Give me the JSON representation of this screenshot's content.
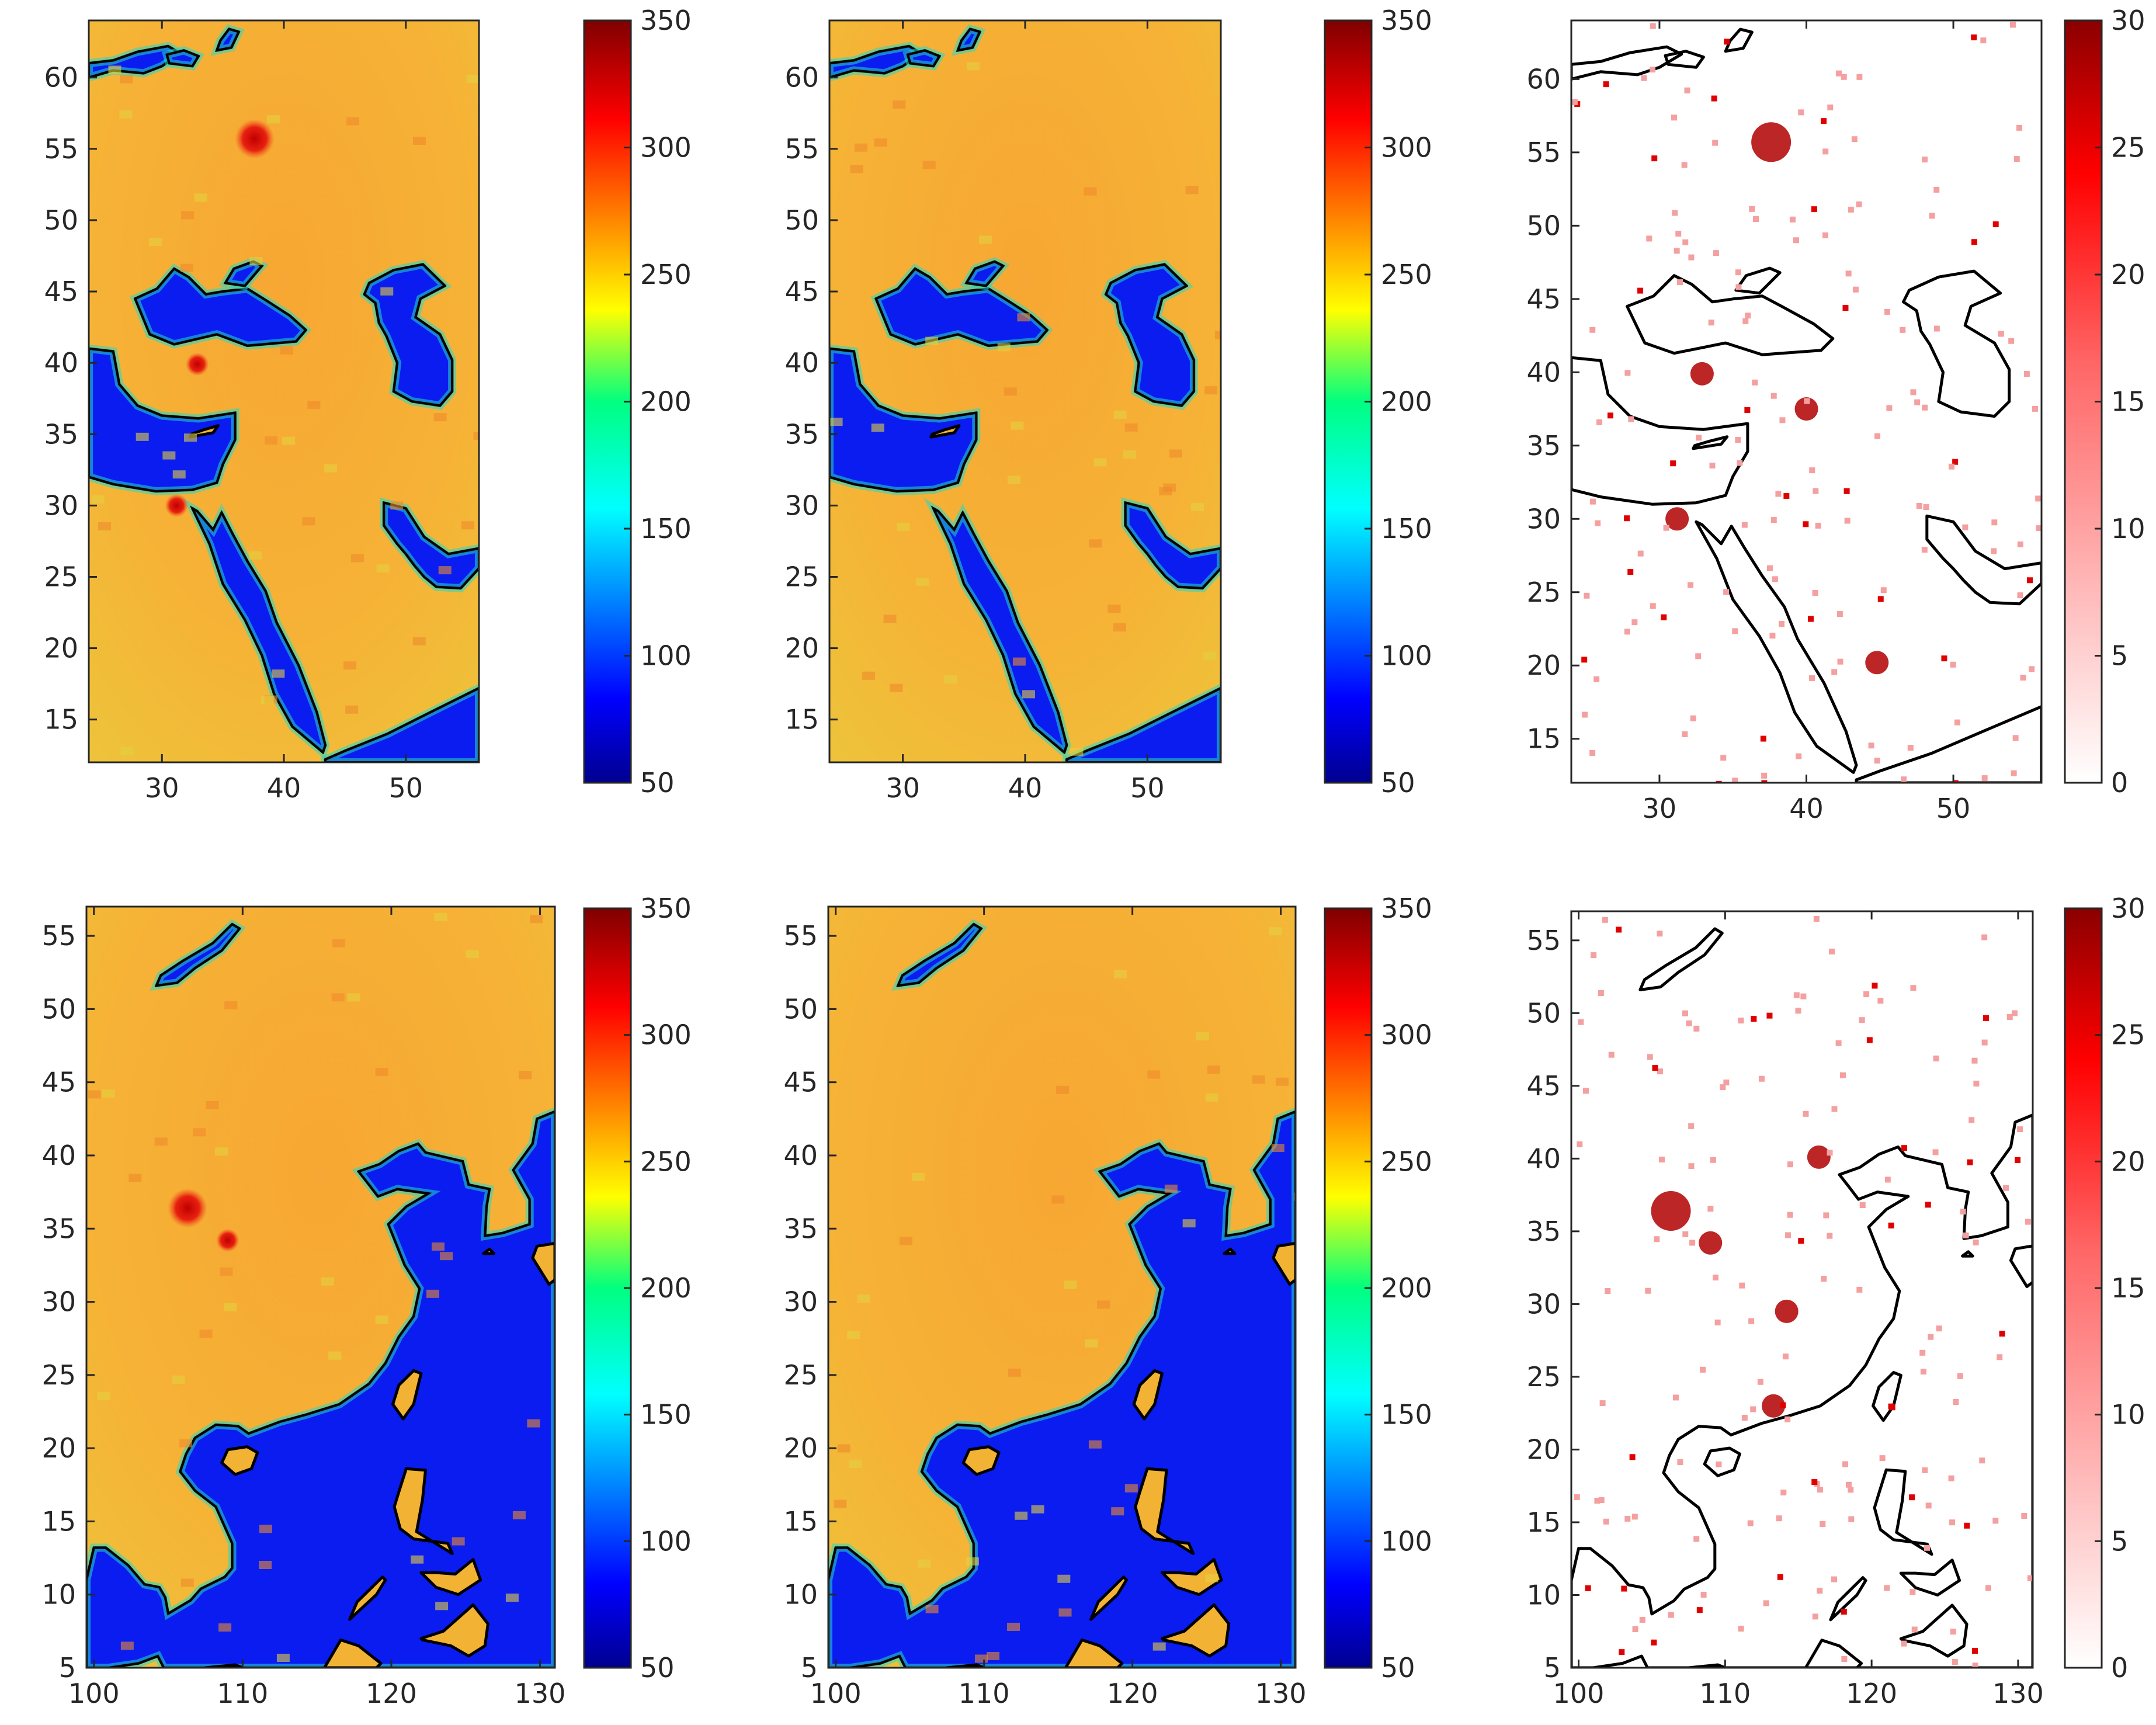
{
  "figure": {
    "description_rows": [
      "Middle East",
      "East Asia"
    ]
  },
  "chart_data": [
    {
      "type": "heatmap",
      "panel": "top-left",
      "xlim": [
        24,
        56
      ],
      "ylim": [
        12,
        64
      ],
      "xticks": [
        30,
        40,
        50
      ],
      "yticks": [
        15,
        20,
        25,
        30,
        35,
        40,
        45,
        50,
        55,
        60
      ],
      "colormap": "jet",
      "clim": [
        50,
        350
      ],
      "colorbar_ticks": [
        50,
        100,
        150,
        200,
        250,
        300,
        350
      ],
      "region": "Middle East",
      "hotspots": [
        [
          37.6,
          55.7
        ],
        [
          31.2,
          30.0
        ],
        [
          32.9,
          39.9
        ]
      ]
    },
    {
      "type": "heatmap",
      "panel": "top-middle",
      "xlim": [
        24,
        56
      ],
      "ylim": [
        12,
        64
      ],
      "xticks": [
        30,
        40,
        50
      ],
      "yticks": [
        15,
        20,
        25,
        30,
        35,
        40,
        45,
        50,
        55,
        60
      ],
      "colormap": "jet",
      "clim": [
        50,
        350
      ],
      "colorbar_ticks": [
        50,
        100,
        150,
        200,
        250,
        300,
        350
      ],
      "region": "Middle East",
      "hotspots": []
    },
    {
      "type": "heatmap",
      "panel": "top-right",
      "xlim": [
        24,
        56
      ],
      "ylim": [
        12,
        64
      ],
      "xticks": [
        30,
        40,
        50
      ],
      "yticks": [
        15,
        20,
        25,
        30,
        35,
        40,
        45,
        50,
        55,
        60
      ],
      "colormap": "white-red",
      "clim": [
        0,
        30
      ],
      "colorbar_ticks": [
        0,
        5,
        10,
        15,
        20,
        25,
        30
      ],
      "region": "Middle East",
      "hotspots": [
        [
          37.6,
          55.7
        ],
        [
          31.2,
          30.0
        ],
        [
          32.9,
          39.9
        ],
        [
          44.8,
          20.2
        ],
        [
          40.0,
          37.5
        ]
      ]
    },
    {
      "type": "heatmap",
      "panel": "bottom-left",
      "xlim": [
        99.5,
        131
      ],
      "ylim": [
        5,
        57
      ],
      "xticks": [
        100,
        110,
        120,
        130
      ],
      "yticks": [
        5,
        10,
        15,
        20,
        25,
        30,
        35,
        40,
        45,
        50,
        55
      ],
      "colormap": "jet",
      "clim": [
        50,
        350
      ],
      "colorbar_ticks": [
        50,
        100,
        150,
        200,
        250,
        300,
        350
      ],
      "region": "East Asia",
      "hotspots": [
        [
          106.3,
          36.4
        ],
        [
          109.0,
          34.2
        ]
      ]
    },
    {
      "type": "heatmap",
      "panel": "bottom-middle",
      "xlim": [
        99.5,
        131
      ],
      "ylim": [
        5,
        57
      ],
      "xticks": [
        100,
        110,
        120,
        130
      ],
      "yticks": [
        5,
        10,
        15,
        20,
        25,
        30,
        35,
        40,
        45,
        50,
        55
      ],
      "colormap": "jet",
      "clim": [
        50,
        350
      ],
      "colorbar_ticks": [
        50,
        100,
        150,
        200,
        250,
        300,
        350
      ],
      "region": "East Asia",
      "hotspots": []
    },
    {
      "type": "heatmap",
      "panel": "bottom-right",
      "xlim": [
        99.5,
        131
      ],
      "ylim": [
        5,
        57
      ],
      "xticks": [
        100,
        110,
        120,
        130
      ],
      "yticks": [
        5,
        10,
        15,
        20,
        25,
        30,
        35,
        40,
        45,
        50,
        55
      ],
      "colormap": "white-red",
      "clim": [
        0,
        30
      ],
      "colorbar_ticks": [
        0,
        5,
        10,
        15,
        20,
        25,
        30
      ],
      "region": "East Asia",
      "hotspots": [
        [
          106.3,
          36.4
        ],
        [
          109.0,
          34.2
        ],
        [
          114.2,
          29.5
        ],
        [
          116.4,
          40.1
        ],
        [
          113.3,
          23.0
        ]
      ]
    }
  ]
}
